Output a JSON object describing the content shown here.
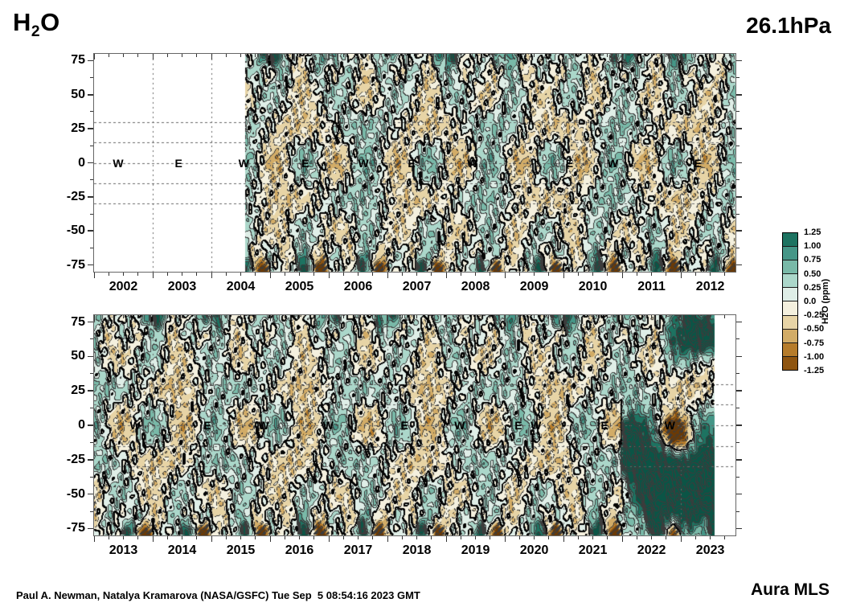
{
  "header": {
    "title_main": "H",
    "title_sub": "2",
    "title_tail": "O",
    "pressure": "26.1hPa"
  },
  "footer": {
    "credit": "Paul A. Newman, Natalya Kramarova (NASA/GSFC) Tue Sep  5 08:54:16 2023 GMT",
    "instrument": "Aura MLS"
  },
  "chart_data": {
    "type": "heatmap",
    "title": "H2O anomaly (latitude vs time) at 26.1 hPa, Aura MLS",
    "value_units": "ppm",
    "pressure_level_hPa": 26.1,
    "lat_axis": {
      "range": [
        -80,
        80
      ],
      "major_ticks": [
        75,
        50,
        25,
        0,
        -25,
        -50,
        -75
      ],
      "minor_ticks": [
        62.5,
        37.5,
        12.5,
        -12.5,
        -37.5,
        -62.5
      ],
      "dashed_gridlines": [
        30,
        15,
        0,
        -15,
        -30
      ]
    },
    "colorbar": {
      "title": "H2O (ppm)",
      "ticks": [
        "1.25",
        "1.00",
        "0.75",
        "0.50",
        "0.25",
        "0.0",
        "-0.25",
        "-0.50",
        "-0.75",
        "-1.00",
        "-1.25"
      ],
      "levels": [
        1.25,
        1.0,
        0.75,
        0.5,
        0.25,
        0.0,
        -0.25,
        -0.5,
        -0.75,
        -1.0,
        -1.25
      ],
      "contour_interval": 0.25,
      "segment_colors_top_to_bottom": [
        "#1d7361",
        "#459687",
        "#79b9a8",
        "#abd7ca",
        "#dfeee7",
        "#f4f0de",
        "#e7d4a6",
        "#d2ac67",
        "#b67c2b",
        "#8f5510"
      ],
      "over_color": "#0b5546",
      "under_color": "#6b3a05"
    },
    "panels": [
      {
        "name": "top",
        "x_range": [
          2002.0,
          2012.93
        ],
        "year_labels": [
          2002,
          2003,
          2004,
          2005,
          2006,
          2007,
          2008,
          2009,
          2010,
          2011,
          2012
        ],
        "data_start": 2004.58,
        "data_end": 2012.93,
        "plume": false,
        "qbo_phase_labels": [
          {
            "t": 2002.41,
            "label": "W"
          },
          {
            "t": 2003.44,
            "label": "E"
          },
          {
            "t": 2004.55,
            "label": "W"
          },
          {
            "t": 2005.6,
            "label": "E"
          },
          {
            "t": 2006.59,
            "label": "W"
          },
          {
            "t": 2007.41,
            "label": "E"
          },
          {
            "t": 2008.45,
            "label": "W"
          },
          {
            "t": 2010.1,
            "label": "E"
          },
          {
            "t": 2010.84,
            "label": "W"
          },
          {
            "t": 2012.29,
            "label": "E"
          }
        ]
      },
      {
        "name": "bottom",
        "x_range": [
          2013.0,
          2023.93
        ],
        "year_labels": [
          2013,
          2014,
          2015,
          2016,
          2017,
          2018,
          2019,
          2020,
          2021,
          2022,
          2023
        ],
        "data_start": 2013.0,
        "data_end": 2023.58,
        "plume": true,
        "qbo_phase_labels": [
          {
            "t": 2013.7,
            "label": "W"
          },
          {
            "t": 2014.93,
            "label": "E"
          },
          {
            "t": 2015.89,
            "label": "W"
          },
          {
            "t": 2016.99,
            "label": "W"
          },
          {
            "t": 2018.29,
            "label": "E"
          },
          {
            "t": 2019.23,
            "label": "W"
          },
          {
            "t": 2020.23,
            "label": "E"
          },
          {
            "t": 2020.53,
            "label": "W"
          },
          {
            "t": 2021.7,
            "label": "E"
          },
          {
            "t": 2022.81,
            "label": "W"
          }
        ]
      }
    ]
  }
}
